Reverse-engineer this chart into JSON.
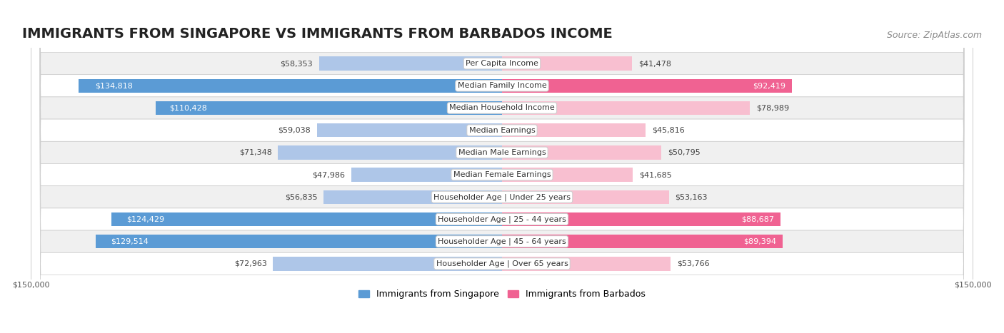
{
  "title": "IMMIGRANTS FROM SINGAPORE VS IMMIGRANTS FROM BARBADOS INCOME",
  "source": "Source: ZipAtlas.com",
  "categories": [
    "Per Capita Income",
    "Median Family Income",
    "Median Household Income",
    "Median Earnings",
    "Median Male Earnings",
    "Median Female Earnings",
    "Householder Age | Under 25 years",
    "Householder Age | 25 - 44 years",
    "Householder Age | 45 - 64 years",
    "Householder Age | Over 65 years"
  ],
  "singapore_values": [
    58353,
    134818,
    110428,
    59038,
    71348,
    47986,
    56835,
    124429,
    129514,
    72963
  ],
  "barbados_values": [
    41478,
    92419,
    78989,
    45816,
    50795,
    41685,
    53163,
    88687,
    89394,
    53766
  ],
  "singapore_color_light": "#aec6e8",
  "singapore_color_dark": "#5b9bd5",
  "barbados_color_light": "#f8bfd0",
  "barbados_color_dark": "#f06292",
  "singapore_label": "Immigrants from Singapore",
  "barbados_label": "Immigrants from Barbados",
  "max_value": 150000,
  "threshold": 80000,
  "row_bg_light": "#f0f0f0",
  "row_bg_white": "#ffffff",
  "title_fontsize": 14,
  "source_fontsize": 9,
  "label_fontsize": 8,
  "value_fontsize": 8,
  "legend_fontsize": 9
}
